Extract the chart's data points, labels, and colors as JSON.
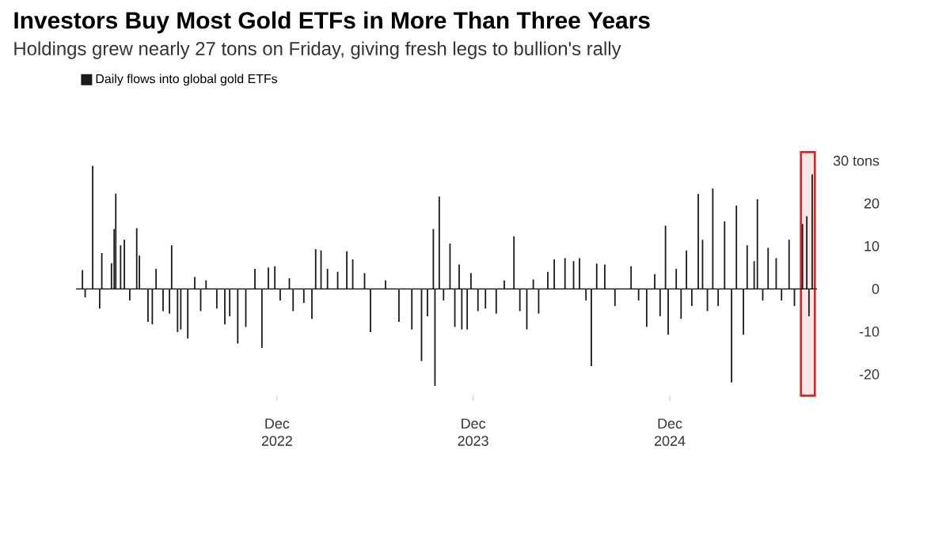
{
  "chart_data": {
    "type": "bar",
    "title": "Investors Buy Most Gold ETFs in More Than Three Years",
    "subtitle": "Holdings grew nearly 27 tons on Friday, giving fresh legs to bullion's rally",
    "x": [
      "2021-12-04",
      "2021-12-09",
      "2021-12-23",
      "2022-01-05",
      "2022-01-09",
      "2022-01-27",
      "2022-02-01",
      "2022-02-04",
      "2022-02-13",
      "2022-02-20",
      "2022-03-02",
      "2022-03-15",
      "2022-03-20",
      "2022-04-05",
      "2022-04-13",
      "2022-04-20",
      "2022-05-03",
      "2022-05-15",
      "2022-05-19",
      "2022-05-30",
      "2022-06-05",
      "2022-06-18",
      "2022-07-01",
      "2022-07-12",
      "2022-07-22",
      "2022-08-11",
      "2022-08-26",
      "2022-09-04",
      "2022-09-19",
      "2022-10-04",
      "2022-10-21",
      "2022-11-03",
      "2022-11-15",
      "2022-11-27",
      "2022-12-07",
      "2022-12-24",
      "2022-12-31",
      "2023-01-20",
      "2023-02-04",
      "2023-02-11",
      "2023-02-21",
      "2023-03-05",
      "2023-03-24",
      "2023-04-10",
      "2023-04-21",
      "2023-05-13",
      "2023-05-24",
      "2023-06-21",
      "2023-07-16",
      "2023-08-09",
      "2023-08-27",
      "2023-09-07",
      "2023-09-18",
      "2023-09-21",
      "2023-09-29",
      "2023-10-07",
      "2023-10-19",
      "2023-10-28",
      "2023-11-05",
      "2023-11-10",
      "2023-11-20",
      "2023-11-27",
      "2023-12-10",
      "2023-12-24",
      "2024-01-13",
      "2024-01-28",
      "2024-02-15",
      "2024-02-26",
      "2024-03-10",
      "2024-03-22",
      "2024-04-01",
      "2024-04-18",
      "2024-04-30",
      "2024-05-20",
      "2024-06-05",
      "2024-06-16",
      "2024-06-28",
      "2024-07-08",
      "2024-07-18",
      "2024-08-02",
      "2024-08-21",
      "2024-09-20",
      "2024-10-04",
      "2024-10-19",
      "2024-11-03",
      "2024-11-13",
      "2024-11-23",
      "2024-11-28",
      "2024-12-13",
      "2024-12-22",
      "2025-01-01",
      "2025-01-11",
      "2025-01-23",
      "2025-01-31",
      "2025-02-09",
      "2025-02-19",
      "2025-03-01",
      "2025-03-13",
      "2025-03-26",
      "2025-04-04",
      "2025-04-17",
      "2025-04-24",
      "2025-05-07",
      "2025-05-13",
      "2025-05-23",
      "2025-06-02",
      "2025-06-17",
      "2025-06-27",
      "2025-07-11",
      "2025-07-21",
      "2025-08-05",
      "2025-08-13",
      "2025-08-17",
      "2025-08-23"
    ],
    "series": [
      {
        "name": "Daily flows into global gold ETFs",
        "color": "#1a1a1a",
        "values": [
          4.4,
          -2,
          28.8,
          -4.6,
          8.4,
          6,
          14,
          22.3,
          10.2,
          11.5,
          -2.7,
          14.2,
          7.8,
          -7.7,
          -8.3,
          4.7,
          -5.2,
          -5.8,
          10.2,
          -10.1,
          -9.5,
          -11.6,
          2.8,
          -5.2,
          2,
          -4.6,
          -8.3,
          -6.4,
          -12.8,
          -8.9,
          4.7,
          -13.8,
          5,
          5.3,
          -2.7,
          2.5,
          -5.2,
          -3.3,
          -7,
          9.3,
          9,
          4.7,
          4,
          8.8,
          6.9,
          3.7,
          -10.1,
          2,
          -7.7,
          -9.5,
          -16.9,
          -6.4,
          14,
          -22.7,
          21.6,
          -2.7,
          10.6,
          -8.9,
          5.7,
          -9.5,
          -9.5,
          3.7,
          -5.2,
          -4.6,
          -5.8,
          2,
          12.3,
          -5.2,
          -9.5,
          2.2,
          -5.8,
          4,
          6.9,
          7.2,
          6.5,
          7.2,
          -2.7,
          -18.1,
          5.9,
          5.7,
          -4,
          5.3,
          -2.7,
          -8.9,
          3.5,
          -6.4,
          14.8,
          -10.7,
          4.7,
          -7,
          9,
          -4,
          22.2,
          11.5,
          -5.2,
          23.5,
          -4,
          15.8,
          -21.9,
          19.5,
          -10.7,
          10.2,
          6.5,
          21,
          -2.7,
          9.6,
          7.2,
          -2.7,
          11.5,
          -4,
          15.2,
          17,
          -6.4,
          26.8
        ]
      }
    ],
    "xlim": [
      "2021-11-22",
      "2025-09-01"
    ],
    "xticks": [
      {
        "value": "2022-12-01",
        "label": "Dec 2022"
      },
      {
        "value": "2023-12-01",
        "label": "Dec 2023"
      },
      {
        "value": "2024-12-01",
        "label": "Dec 2024"
      }
    ],
    "ylim": [
      -25,
      32
    ],
    "yticks": [
      {
        "value": 30,
        "label": "30 tons"
      },
      20,
      10,
      0,
      -10,
      -20
    ],
    "ref_lines": [
      {
        "axis": "y",
        "value": 0,
        "color": "#000000"
      }
    ],
    "bands": [
      {
        "axis": "x",
        "from": "2025-08-02",
        "to": "2025-08-28",
        "color": "#d62728"
      }
    ],
    "legend": "top left",
    "grid": false
  }
}
